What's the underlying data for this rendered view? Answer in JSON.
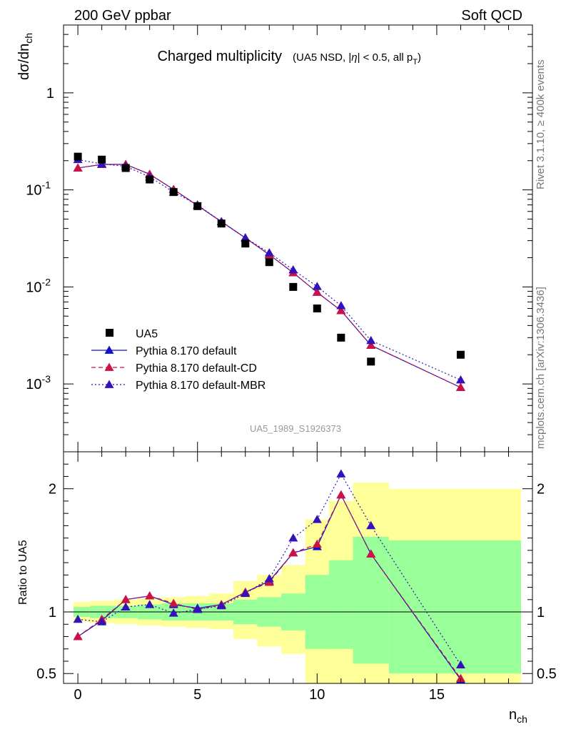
{
  "header": {
    "left": "200 GeV ppbar",
    "right": "Soft QCD"
  },
  "side_labels": {
    "rivet": "Rivet 3.1.10, ≥ 400k events",
    "mcplots": "mcplots.cern.ch [arXiv:1306.3436]"
  },
  "chart_data": [
    {
      "type": "scatter",
      "title": "Charged multiplicity",
      "subtitle": "(UA5 NSD, |η| < 0.5, all pT)",
      "ylabel": "dσ/dnch",
      "xlabel": "nch",
      "xlim": [
        -0.6,
        19
      ],
      "ylim": [
        0.0002,
        5
      ],
      "yscale": "log",
      "ytick_labels": [
        "10^-3",
        "10^-2",
        "10^-1",
        "1"
      ],
      "watermark": "UA5_1989_S1926373",
      "legend_position": "bottom-left",
      "colors": {
        "data": "#000000",
        "default": "#1111cc",
        "cd": "#cc1144",
        "mbr": "#3311bb"
      },
      "series": [
        {
          "name": "UA5",
          "style": "markers",
          "x": [
            0,
            1,
            2,
            3,
            4,
            5,
            6,
            7,
            8,
            9,
            10,
            11,
            12.25,
            16
          ],
          "y": [
            0.22,
            0.205,
            0.168,
            0.128,
            0.095,
            0.068,
            0.045,
            0.028,
            0.018,
            0.01,
            0.006,
            0.003,
            0.0017,
            0.002
          ]
        },
        {
          "name": "Pythia 8.170 default",
          "style": "solid",
          "x": [
            0,
            1,
            2,
            3,
            4,
            5,
            6,
            7,
            8,
            9,
            10,
            11,
            12.25,
            16
          ],
          "y": [
            0.168,
            0.183,
            0.183,
            0.145,
            0.101,
            0.069,
            0.047,
            0.032,
            0.0215,
            0.014,
            0.0088,
            0.0057,
            0.0025,
            0.00092
          ]
        },
        {
          "name": "Pythia 8.170 default-CD",
          "style": "dashed",
          "x": [
            0,
            1,
            2,
            3,
            4,
            5,
            6,
            7,
            8,
            9,
            10,
            11,
            12.25,
            16
          ],
          "y": [
            0.168,
            0.183,
            0.183,
            0.145,
            0.101,
            0.069,
            0.047,
            0.032,
            0.0215,
            0.014,
            0.0088,
            0.0057,
            0.0025,
            0.00092
          ]
        },
        {
          "name": "Pythia 8.170 default-MBR",
          "style": "dotted",
          "x": [
            0,
            1,
            2,
            3,
            4,
            5,
            6,
            7,
            8,
            9,
            10,
            11,
            12.25,
            16
          ],
          "y": [
            0.205,
            0.185,
            0.175,
            0.136,
            0.095,
            0.07,
            0.047,
            0.032,
            0.0225,
            0.015,
            0.0101,
            0.0064,
            0.0028,
            0.0011
          ]
        }
      ]
    },
    {
      "type": "line",
      "ylabel": "Ratio to UA5",
      "xlabel": "nch",
      "xlim": [
        -0.6,
        19
      ],
      "ylim": [
        0.42,
        2.3
      ],
      "ytick_labels": [
        "0.5",
        "1",
        "2"
      ],
      "xtick_labels": [
        "0",
        "5",
        "10",
        "15"
      ],
      "reference_line": 1,
      "band_colors": {
        "inner": "#99ff99",
        "outer": "#ffff99"
      },
      "bands": {
        "bin_edges": [
          -0.5,
          0.5,
          1.5,
          2.5,
          3.5,
          4.5,
          5.5,
          6.5,
          7.5,
          8.5,
          9.5,
          10.5,
          11.5,
          13,
          19
        ],
        "inner_low": [
          0.96,
          0.95,
          0.95,
          0.94,
          0.93,
          0.93,
          0.93,
          0.9,
          0.88,
          0.85,
          0.7,
          0.7,
          0.58,
          0.5
        ],
        "inner_high": [
          1.04,
          1.05,
          1.05,
          1.06,
          1.07,
          1.07,
          1.07,
          1.1,
          1.12,
          1.15,
          1.3,
          1.42,
          1.61,
          1.58
        ],
        "outer_low": [
          0.92,
          0.91,
          0.9,
          0.89,
          0.88,
          0.87,
          0.86,
          0.78,
          0.72,
          0.66,
          0.38,
          0.38,
          0.38,
          0.38
        ],
        "outer_high": [
          1.08,
          1.09,
          1.1,
          1.11,
          1.12,
          1.13,
          1.15,
          1.25,
          1.3,
          1.38,
          1.75,
          1.9,
          2.05,
          2.0
        ]
      },
      "series": [
        {
          "name": "Pythia 8.170 default",
          "style": "solid",
          "x": [
            0,
            1,
            2,
            3,
            4,
            5,
            6,
            7,
            8,
            9,
            10,
            11,
            12.25,
            16
          ],
          "y": [
            0.8,
            0.93,
            1.1,
            1.13,
            1.06,
            1.03,
            1.06,
            1.16,
            1.25,
            1.48,
            1.53,
            1.95,
            1.47,
            0.45
          ]
        },
        {
          "name": "Pythia 8.170 default-CD",
          "style": "dashed",
          "x": [
            0,
            1,
            2,
            3,
            4,
            5,
            6,
            7,
            8,
            9,
            10,
            11,
            12.25,
            16
          ],
          "y": [
            0.8,
            0.94,
            1.1,
            1.13,
            1.07,
            1.02,
            1.06,
            1.16,
            1.24,
            1.48,
            1.55,
            1.95,
            1.47,
            0.46
          ]
        },
        {
          "name": "Pythia 8.170 default-MBR",
          "style": "dotted",
          "x": [
            0,
            1,
            2,
            3,
            4,
            5,
            6,
            7,
            8,
            9,
            10,
            11,
            12.25,
            16
          ],
          "y": [
            0.94,
            0.92,
            1.04,
            1.06,
            0.99,
            1.02,
            1.05,
            1.15,
            1.27,
            1.6,
            1.75,
            2.12,
            1.7,
            0.57
          ]
        }
      ]
    }
  ]
}
